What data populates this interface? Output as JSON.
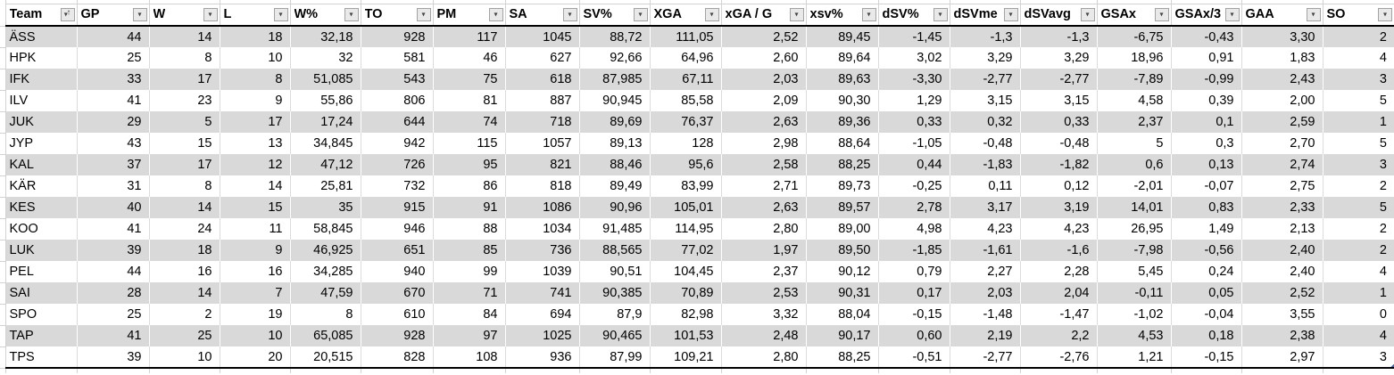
{
  "sheet": {
    "columns": [
      {
        "label": "Team",
        "sort": "asc"
      },
      {
        "label": "GP"
      },
      {
        "label": "W"
      },
      {
        "label": "L"
      },
      {
        "label": "W%"
      },
      {
        "label": "TO"
      },
      {
        "label": "PM"
      },
      {
        "label": "SA"
      },
      {
        "label": "SV%"
      },
      {
        "label": "XGA"
      },
      {
        "label": "xGA / G"
      },
      {
        "label": "xsv%"
      },
      {
        "label": "dSV%"
      },
      {
        "label": "dSVme"
      },
      {
        "label": "dSVavg"
      },
      {
        "label": "GSAx"
      },
      {
        "label": "GSAx/3"
      },
      {
        "label": "GAA"
      },
      {
        "label": "SO"
      }
    ],
    "rows": [
      [
        "ÄSS",
        "44",
        "14",
        "18",
        "32,18",
        "928",
        "117",
        "1045",
        "88,72",
        "111,05",
        "2,52",
        "89,45",
        "-1,45",
        "-1,3",
        "-1,3",
        "-6,75",
        "-0,43",
        "3,30",
        "2"
      ],
      [
        "HPK",
        "25",
        "8",
        "10",
        "32",
        "581",
        "46",
        "627",
        "92,66",
        "64,96",
        "2,60",
        "89,64",
        "3,02",
        "3,29",
        "3,29",
        "18,96",
        "0,91",
        "1,83",
        "4"
      ],
      [
        "IFK",
        "33",
        "17",
        "8",
        "51,085",
        "543",
        "75",
        "618",
        "87,985",
        "67,11",
        "2,03",
        "89,63",
        "-3,30",
        "-2,77",
        "-2,77",
        "-7,89",
        "-0,99",
        "2,43",
        "3"
      ],
      [
        "ILV",
        "41",
        "23",
        "9",
        "55,86",
        "806",
        "81",
        "887",
        "90,945",
        "85,58",
        "2,09",
        "90,30",
        "1,29",
        "3,15",
        "3,15",
        "4,58",
        "0,39",
        "2,00",
        "5"
      ],
      [
        "JUK",
        "29",
        "5",
        "17",
        "17,24",
        "644",
        "74",
        "718",
        "89,69",
        "76,37",
        "2,63",
        "89,36",
        "0,33",
        "0,32",
        "0,33",
        "2,37",
        "0,1",
        "2,59",
        "1"
      ],
      [
        "JYP",
        "43",
        "15",
        "13",
        "34,845",
        "942",
        "115",
        "1057",
        "89,13",
        "128",
        "2,98",
        "88,64",
        "-1,05",
        "-0,48",
        "-0,48",
        "5",
        "0,3",
        "2,70",
        "5"
      ],
      [
        "KAL",
        "37",
        "17",
        "12",
        "47,12",
        "726",
        "95",
        "821",
        "88,46",
        "95,6",
        "2,58",
        "88,25",
        "0,44",
        "-1,83",
        "-1,82",
        "0,6",
        "0,13",
        "2,74",
        "3"
      ],
      [
        "KÄR",
        "31",
        "8",
        "14",
        "25,81",
        "732",
        "86",
        "818",
        "89,49",
        "83,99",
        "2,71",
        "89,73",
        "-0,25",
        "0,11",
        "0,12",
        "-2,01",
        "-0,07",
        "2,75",
        "2"
      ],
      [
        "KES",
        "40",
        "14",
        "15",
        "35",
        "915",
        "91",
        "1086",
        "90,96",
        "105,01",
        "2,63",
        "89,57",
        "2,78",
        "3,17",
        "3,19",
        "14,01",
        "0,83",
        "2,33",
        "5"
      ],
      [
        "KOO",
        "41",
        "24",
        "11",
        "58,845",
        "946",
        "88",
        "1034",
        "91,485",
        "114,95",
        "2,80",
        "89,00",
        "4,98",
        "4,23",
        "4,23",
        "26,95",
        "1,49",
        "2,13",
        "2"
      ],
      [
        "LUK",
        "39",
        "18",
        "9",
        "46,925",
        "651",
        "85",
        "736",
        "88,565",
        "77,02",
        "1,97",
        "89,50",
        "-1,85",
        "-1,61",
        "-1,6",
        "-7,98",
        "-0,56",
        "2,40",
        "2"
      ],
      [
        "PEL",
        "44",
        "16",
        "16",
        "34,285",
        "940",
        "99",
        "1039",
        "90,51",
        "104,45",
        "2,37",
        "90,12",
        "0,79",
        "2,27",
        "2,28",
        "5,45",
        "0,24",
        "2,40",
        "4"
      ],
      [
        "SAI",
        "28",
        "14",
        "7",
        "47,59",
        "670",
        "71",
        "741",
        "90,385",
        "70,89",
        "2,53",
        "90,31",
        "0,17",
        "2,03",
        "2,04",
        "-0,11",
        "0,05",
        "2,52",
        "1"
      ],
      [
        "SPO",
        "25",
        "2",
        "19",
        "8",
        "610",
        "84",
        "694",
        "87,9",
        "82,98",
        "3,32",
        "88,04",
        "-0,15",
        "-1,48",
        "-1,47",
        "-1,02",
        "-0,04",
        "3,55",
        "0"
      ],
      [
        "TAP",
        "41",
        "25",
        "10",
        "65,085",
        "928",
        "97",
        "1025",
        "90,465",
        "101,53",
        "2,48",
        "90,17",
        "0,60",
        "2,19",
        "2,2",
        "4,53",
        "0,18",
        "2,38",
        "4"
      ],
      [
        "TPS",
        "39",
        "10",
        "20",
        "20,515",
        "828",
        "108",
        "936",
        "87,99",
        "109,21",
        "2,80",
        "88,25",
        "-0,51",
        "-2,77",
        "-2,76",
        "1,21",
        "-0,15",
        "2,97",
        "3"
      ]
    ],
    "icons": {
      "filter_dropdown": "▾",
      "sort_ascending": "↑"
    },
    "colors": {
      "band_row": "#d9d9d9",
      "gridline": "#d2d2d2",
      "table_rule": "#000000",
      "filter_button_bg": "#e9e9e9",
      "filter_button_border": "#a3a3a3",
      "resize_handle": "#2e6bc6"
    }
  }
}
